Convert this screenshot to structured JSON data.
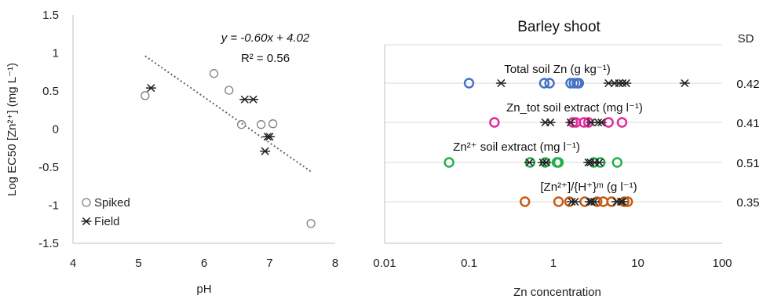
{
  "chart_data": [
    {
      "type": "scatter",
      "xlabel": "pH",
      "ylabel": "Log EC50 [Zn²⁺] (mg L⁻¹)",
      "xlim": [
        4,
        8
      ],
      "ylim": [
        -1.5,
        1.5
      ],
      "x_ticks": [
        4,
        5,
        6,
        7,
        8
      ],
      "y_ticks": [
        -1.5,
        -1,
        -0.5,
        0,
        0.5,
        1,
        1.5
      ],
      "grid": false,
      "legend_position": "bottom-left",
      "annotation_equation": "y = -0.60x + 4.02",
      "annotation_r2": "R² = 0.56",
      "trendline": {
        "slope": -0.6,
        "intercept": 4.02,
        "x_range": [
          5.1,
          7.65
        ]
      },
      "series": [
        {
          "name": "Spiked",
          "marker": "circle",
          "color": "#808080",
          "points": [
            [
              5.1,
              0.44
            ],
            [
              6.15,
              0.73
            ],
            [
              6.38,
              0.51
            ],
            [
              6.57,
              0.06
            ],
            [
              6.87,
              0.06
            ],
            [
              7.05,
              0.07
            ],
            [
              7.63,
              -1.24
            ]
          ]
        },
        {
          "name": "Field",
          "marker": "asterisk",
          "color": "#222222",
          "points": [
            [
              5.19,
              0.54
            ],
            [
              6.62,
              0.39
            ],
            [
              6.75,
              0.39
            ],
            [
              6.93,
              -0.29
            ],
            [
              6.97,
              -0.1
            ],
            [
              7.0,
              -0.1
            ]
          ]
        }
      ]
    },
    {
      "type": "scatter",
      "title": "Barley shoot",
      "xlabel": "Zn concentration",
      "x_scale": "log",
      "xlim": [
        0.01,
        100
      ],
      "x_ticks": [
        0.01,
        0.1,
        1,
        10,
        100
      ],
      "x_tick_labels": [
        "0.01",
        "0.1",
        "1",
        "10",
        "100"
      ],
      "grid": "horizontal",
      "sd_header": "SD",
      "rows": [
        {
          "label": "Total soil  Zn (g kg⁻¹)",
          "color": "#4472C4",
          "sd": "0.42",
          "circles": [
            0.1,
            0.78,
            0.9,
            1.6,
            1.75,
            1.9,
            2.0
          ],
          "asterisks": [
            0.24,
            4.5,
            5.3,
            6.0,
            6.6,
            7.3,
            36.0
          ]
        },
        {
          "label": "Zn_tot soil extract (mg l⁻¹)",
          "color": "#E0289A",
          "sd": "0.41",
          "circles": [
            0.2,
            1.7,
            1.85,
            2.3,
            2.6,
            4.5,
            6.5
          ],
          "asterisks": [
            0.8,
            0.92,
            1.6,
            2.8,
            3.4,
            3.7
          ]
        },
        {
          "label": "Zn²⁺ soil extract (mg l⁻¹)",
          "color": "#22B14C",
          "sd": "0.51",
          "circles": [
            0.058,
            0.53,
            0.8,
            1.1,
            1.15,
            3.0,
            3.6,
            5.7
          ],
          "asterisks": [
            0.52,
            0.75,
            0.82,
            2.6,
            2.75,
            3.1,
            3.5
          ]
        },
        {
          "label": "[Zn²⁺]/{H⁺}ᵐ (g l⁻¹)",
          "color": "#C55A11",
          "sd": "0.35",
          "circles": [
            0.46,
            1.15,
            1.55,
            2.35,
            3.3,
            3.9,
            4.9,
            6.9,
            7.6
          ],
          "asterisks": [
            1.65,
            1.8,
            2.7,
            2.85,
            3.05,
            5.6,
            6.3,
            6.6
          ]
        }
      ]
    }
  ]
}
